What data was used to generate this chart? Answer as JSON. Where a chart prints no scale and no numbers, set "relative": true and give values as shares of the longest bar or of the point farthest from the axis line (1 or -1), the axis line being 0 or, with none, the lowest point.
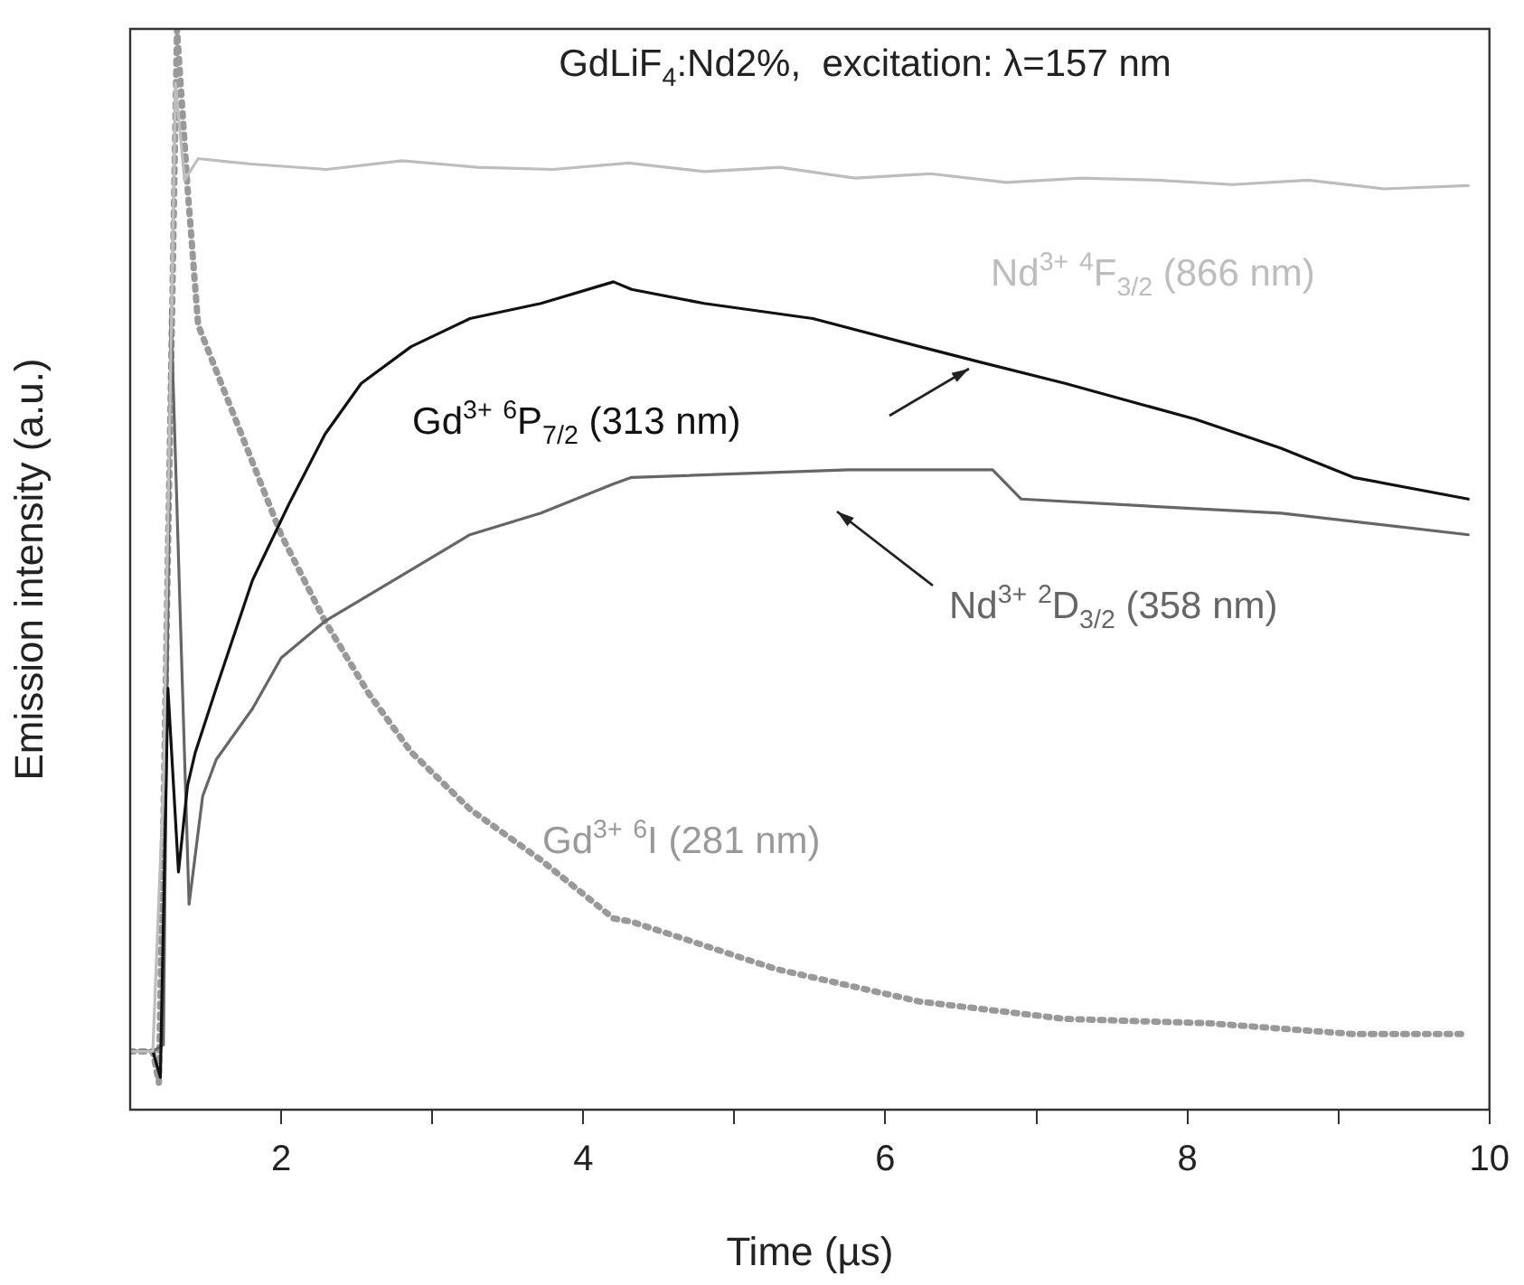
{
  "chart_data": {
    "type": "line",
    "relative": true,
    "xlabel": "Time (µs)",
    "ylabel": "Emission intensity (a.u.)",
    "xlim": [
      1,
      10
    ],
    "xticks": [
      {
        "value": 2,
        "label": "2"
      },
      {
        "value": 3,
        "label": null
      },
      {
        "value": 4,
        "label": "4"
      },
      {
        "value": 5,
        "label": null
      },
      {
        "value": 6,
        "label": "6"
      },
      {
        "value": 7,
        "label": null
      },
      {
        "value": 8,
        "label": "8"
      },
      {
        "value": 9,
        "label": null
      },
      {
        "value": 10,
        "label": "10"
      }
    ],
    "grid": false,
    "legend": false,
    "marker": "none",
    "annotations": [
      "GdLiF$_{4}$:Nd2%,  excitation: λ=157 nm"
    ],
    "series": [
      {
        "name": "Nd$^{3+}$ $^{4}$F$_{3/2}$ (866 nm)",
        "color": "#bdbdbd",
        "line_style": "solid",
        "x": [
          1,
          1.15,
          1.22,
          1.3,
          1.36,
          1.45,
          1.8,
          2.3,
          2.8,
          3.3,
          3.8,
          4.3,
          4.8,
          5.3,
          5.8,
          6.3,
          6.8,
          7.3,
          7.8,
          8.3,
          8.8,
          9.3,
          9.86
        ],
        "values": [
          0.054,
          0.054,
          0.3,
          0.95,
          0.86,
          0.88,
          0.875,
          0.87,
          0.878,
          0.872,
          0.87,
          0.876,
          0.868,
          0.872,
          0.862,
          0.866,
          0.858,
          0.862,
          0.86,
          0.856,
          0.86,
          0.852,
          0.855
        ]
      },
      {
        "name": "Gd$^{3+}$ $^{6}$P$_{7/2}$ (313 nm)",
        "color": "#111111",
        "line_style": "solid",
        "x": [
          1,
          1.15,
          1.2,
          1.25,
          1.32,
          1.38,
          1.43,
          1.57,
          1.81,
          2.05,
          2.29,
          2.53,
          2.86,
          3.25,
          3.72,
          4.2,
          4.32,
          4.8,
          5.52,
          6.23,
          6.62,
          7.19,
          8.05,
          8.62,
          9.1,
          9.86
        ],
        "values": [
          0.054,
          0.054,
          0.03,
          0.39,
          0.22,
          0.3,
          0.33,
          0.39,
          0.49,
          0.56,
          0.625,
          0.672,
          0.706,
          0.732,
          0.746,
          0.766,
          0.759,
          0.746,
          0.732,
          0.706,
          0.692,
          0.672,
          0.639,
          0.612,
          0.585,
          0.565
        ]
      },
      {
        "name": "Nd$^{3+}$ $^{2}$D$_{3/2}$ (358 nm)",
        "color": "#666666",
        "line_style": "solid",
        "x": [
          1,
          1.15,
          1.22,
          1.27,
          1.39,
          1.48,
          1.57,
          1.81,
          2,
          2.29,
          2.77,
          3.25,
          3.72,
          4.2,
          4.32,
          5.76,
          6.71,
          6.9,
          7.67,
          8.62,
          9.86
        ],
        "values": [
          0.054,
          0.054,
          0.06,
          0.74,
          0.19,
          0.29,
          0.324,
          0.371,
          0.418,
          0.452,
          0.492,
          0.532,
          0.552,
          0.579,
          0.585,
          0.592,
          0.592,
          0.565,
          0.559,
          0.552,
          0.532
        ]
      },
      {
        "name": "Gd$^{3+}$ $^{6}$I (281 nm)",
        "color": "#999999",
        "line_style": "dotted",
        "x": [
          1,
          1.15,
          1.19,
          1.31,
          1.38,
          1.45,
          1.62,
          1.81,
          2,
          2.29,
          2.58,
          2.86,
          3.25,
          3.72,
          4.2,
          4.32,
          5.28,
          6.23,
          7.19,
          8.14,
          9.1,
          9.86
        ],
        "values": [
          0.054,
          0.054,
          0.025,
          1,
          0.853,
          0.726,
          0.666,
          0.599,
          0.532,
          0.452,
          0.385,
          0.331,
          0.278,
          0.231,
          0.177,
          0.174,
          0.13,
          0.1,
          0.084,
          0.08,
          0.07,
          0.07
        ]
      }
    ]
  }
}
